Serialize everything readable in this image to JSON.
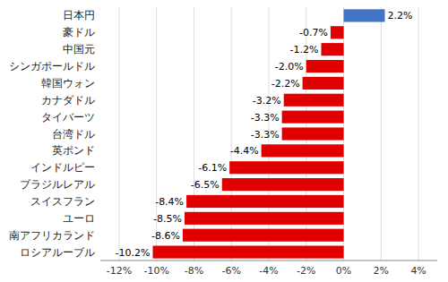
{
  "chart_data": {
    "type": "bar",
    "orientation": "horizontal",
    "categories": [
      "ロシアルーブル",
      "南アフリカランド",
      "ユーロ",
      "スイスフラン",
      "ブラジルレアル",
      "インドルピー",
      "英ポンド",
      "台湾ドル",
      "タイバーツ",
      "カナダドル",
      "韓国ウォン",
      "シンガポールドル",
      "中国元",
      "豪ドル",
      "日本円"
    ],
    "values": [
      -10.2,
      -8.6,
      -8.5,
      -8.4,
      -6.5,
      -6.1,
      -4.4,
      -3.3,
      -3.3,
      -3.2,
      -2.2,
      -2.0,
      -1.2,
      -0.7,
      2.2
    ],
    "value_labels": [
      "-10.2%",
      "-8.6%",
      "-8.5%",
      "-8.4%",
      "-6.5%",
      "-6.1%",
      "-4.4%",
      "-3.3%",
      "-3.3%",
      "-3.2%",
      "-2.2%",
      "-2.0%",
      "-1.2%",
      "-0.7%",
      "2.2%"
    ],
    "colors": [
      "#e00000",
      "#e00000",
      "#e00000",
      "#e00000",
      "#e00000",
      "#e00000",
      "#e00000",
      "#e00000",
      "#e00000",
      "#e00000",
      "#e00000",
      "#e00000",
      "#e00000",
      "#e00000",
      "#4472c4"
    ],
    "xlim": [
      -13,
      5
    ],
    "xticks": [
      {
        "value": -12,
        "label": "-12%"
      },
      {
        "value": -10,
        "label": "-10%"
      },
      {
        "value": -8,
        "label": "-8%"
      },
      {
        "value": -6,
        "label": "-6%"
      },
      {
        "value": -4,
        "label": "-4%"
      },
      {
        "value": -2,
        "label": "-2%"
      },
      {
        "value": 0,
        "label": "0%"
      },
      {
        "value": 2,
        "label": "2%"
      },
      {
        "value": 4,
        "label": "4%"
      }
    ],
    "grid": true,
    "data_labels": true
  }
}
